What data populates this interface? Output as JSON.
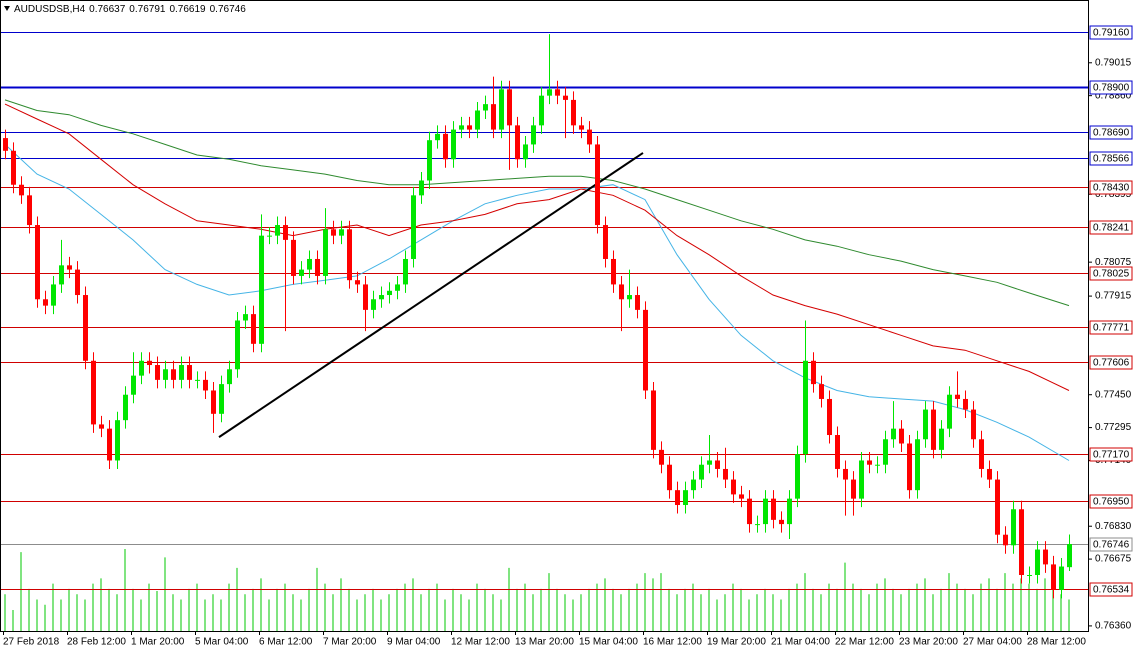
{
  "chart_data": {
    "type": "candlestick",
    "symbol": "AUDUSDSB,H4",
    "categories": [
      "27 Feb 2018",
      null,
      null,
      null,
      null,
      null,
      null,
      null,
      "28 Feb 12:00",
      null,
      null,
      null,
      null,
      null,
      null,
      null,
      "1 Mar 20:00",
      null,
      null,
      null,
      null,
      null,
      null,
      null,
      "5 Mar 04:00",
      null,
      null,
      null,
      null,
      null,
      null,
      null,
      "6 Mar 12:00",
      null,
      null,
      null,
      null,
      null,
      null,
      null,
      "7 Mar 20:00",
      null,
      null,
      null,
      null,
      null,
      null,
      null,
      "9 Mar 04:00",
      null,
      null,
      null,
      null,
      null,
      null,
      null,
      "12 Mar 12:00",
      null,
      null,
      null,
      null,
      null,
      null,
      null,
      "13 Mar 20:00",
      null,
      null,
      null,
      null,
      null,
      null,
      null,
      "15 Mar 04:00",
      null,
      null,
      null,
      null,
      null,
      null,
      null,
      "16 Mar 12:00",
      null,
      null,
      null,
      null,
      null,
      null,
      null,
      "19 Mar 20:00",
      null,
      null,
      null,
      null,
      null,
      null,
      null,
      "21 Mar 04:00",
      null,
      null,
      null,
      null,
      null,
      null,
      null,
      "22 Mar 12:00",
      null,
      null,
      null,
      null,
      null,
      null,
      null,
      "23 Mar 20:00",
      null,
      null,
      null,
      null,
      null,
      null,
      null,
      "27 Mar 04:00",
      null,
      null,
      null,
      null,
      null,
      null,
      null,
      "28 Mar 12:00",
      null,
      null,
      null,
      null,
      null
    ],
    "open": [
      0.7866,
      0.786,
      0.7844,
      0.7839,
      0.7825,
      0.779,
      0.7787,
      0.7797,
      0.7806,
      0.7804,
      0.7792,
      0.7761,
      0.7731,
      0.7729,
      0.7714,
      0.7733,
      0.7745,
      0.7754,
      0.7761,
      0.7759,
      0.7752,
      0.7757,
      0.7752,
      0.7759,
      0.7752,
      0.7752,
      0.7747,
      0.7736,
      0.775,
      0.7757,
      0.778,
      0.7783,
      0.7769,
      0.782,
      0.782,
      0.7825,
      0.7818,
      0.7801,
      0.7804,
      0.7809,
      0.7801,
      0.7823,
      0.782,
      0.7823,
      0.7799,
      0.7797,
      0.7785,
      0.779,
      0.7792,
      0.7794,
      0.7797,
      0.7809,
      0.7839,
      0.7846,
      0.7865,
      0.7868,
      0.7856,
      0.787,
      0.7872,
      0.787,
      0.7879,
      0.7882,
      0.787,
      0.7889,
      0.7872,
      0.7856,
      0.7863,
      0.7872,
      0.7886,
      0.7889,
      0.7886,
      0.7884,
      0.7872,
      0.787,
      0.7863,
      0.7825,
      0.7809,
      0.7797,
      0.779,
      0.7792,
      0.7785,
      0.7747,
      0.7719,
      0.7712,
      0.77,
      0.7693,
      0.77,
      0.7705,
      0.7712,
      0.7714,
      0.771,
      0.7705,
      0.7698,
      0.7696,
      0.7684,
      0.7684,
      0.7696,
      0.7686,
      0.7684,
      0.7696,
      0.7717,
      0.7761,
      0.775,
      0.7743,
      0.7726,
      0.771,
      0.7705,
      0.7696,
      0.7714,
      0.7712,
      0.7712,
      0.7724,
      0.7729,
      0.7722,
      0.77,
      0.7724,
      0.7738,
      0.7719,
      0.7729,
      0.7745,
      0.7743,
      0.7738,
      0.7724,
      0.771,
      0.7705,
      0.7679,
      0.7674,
      0.7691,
      0.766,
      0.766,
      0.7672,
      0.7665,
      0.7653,
      0.76637
    ],
    "high": [
      0.787,
      0.7864,
      0.7848,
      0.7843,
      0.7829,
      0.7794,
      0.7801,
      0.7818,
      0.781,
      0.7808,
      0.7796,
      0.7765,
      0.7735,
      0.7733,
      0.7737,
      0.7749,
      0.7765,
      0.7765,
      0.7765,
      0.7763,
      0.7761,
      0.7761,
      0.7763,
      0.7763,
      0.7756,
      0.7756,
      0.7751,
      0.7754,
      0.7761,
      0.7784,
      0.7787,
      0.7787,
      0.783,
      0.7824,
      0.7829,
      0.7829,
      0.7822,
      0.7808,
      0.7813,
      0.7813,
      0.7833,
      0.7827,
      0.7827,
      0.7827,
      0.7803,
      0.7801,
      0.7794,
      0.7796,
      0.7798,
      0.7801,
      0.7813,
      0.7843,
      0.785,
      0.7869,
      0.7872,
      0.7872,
      0.7874,
      0.7876,
      0.7876,
      0.7883,
      0.7886,
      0.7895,
      0.7893,
      0.7893,
      0.7876,
      0.7867,
      0.7876,
      0.789,
      0.7915,
      0.7893,
      0.789,
      0.7888,
      0.7876,
      0.7874,
      0.7867,
      0.7829,
      0.7813,
      0.7801,
      0.7804,
      0.7796,
      0.7789,
      0.7751,
      0.7723,
      0.7716,
      0.7704,
      0.7704,
      0.7709,
      0.7716,
      0.7726,
      0.7718,
      0.772,
      0.7709,
      0.7702,
      0.77,
      0.7688,
      0.77,
      0.77,
      0.769,
      0.77,
      0.7721,
      0.778,
      0.7765,
      0.7754,
      0.7747,
      0.773,
      0.7714,
      0.7709,
      0.7718,
      0.7718,
      0.7716,
      0.7728,
      0.7742,
      0.7733,
      0.7726,
      0.7728,
      0.7742,
      0.7742,
      0.7733,
      0.7749,
      0.7756,
      0.7747,
      0.7742,
      0.7728,
      0.7714,
      0.7709,
      0.7683,
      0.7695,
      0.7695,
      0.7664,
      0.7676,
      0.7676,
      0.7669,
      0.7668,
      0.76791
    ],
    "low": [
      0.7856,
      0.784,
      0.7835,
      0.7821,
      0.7786,
      0.7783,
      0.7783,
      0.7793,
      0.78,
      0.7788,
      0.7757,
      0.7727,
      0.7725,
      0.771,
      0.771,
      0.7729,
      0.7741,
      0.775,
      0.7755,
      0.7748,
      0.7748,
      0.7748,
      0.7748,
      0.7748,
      0.7748,
      0.7743,
      0.7727,
      0.7732,
      0.7746,
      0.7753,
      0.7776,
      0.7765,
      0.7765,
      0.7816,
      0.7816,
      0.7775,
      0.7797,
      0.7797,
      0.78,
      0.7797,
      0.7797,
      0.7816,
      0.7816,
      0.7795,
      0.7793,
      0.7775,
      0.7781,
      0.7786,
      0.7788,
      0.779,
      0.7793,
      0.7805,
      0.7835,
      0.7842,
      0.7861,
      0.7852,
      0.7852,
      0.7866,
      0.7866,
      0.7866,
      0.7875,
      0.7866,
      0.7866,
      0.7851,
      0.7852,
      0.7852,
      0.7859,
      0.7868,
      0.7882,
      0.7882,
      0.7866,
      0.7868,
      0.7866,
      0.7859,
      0.7821,
      0.7805,
      0.7793,
      0.7775,
      0.7786,
      0.7781,
      0.7743,
      0.7715,
      0.7708,
      0.7696,
      0.7689,
      0.7689,
      0.7696,
      0.7701,
      0.7708,
      0.7706,
      0.7701,
      0.7694,
      0.7692,
      0.768,
      0.768,
      0.768,
      0.7682,
      0.768,
      0.7677,
      0.7692,
      0.7713,
      0.7746,
      0.7739,
      0.7722,
      0.7706,
      0.7688,
      0.7688,
      0.7692,
      0.7708,
      0.7708,
      0.7708,
      0.772,
      0.7718,
      0.7696,
      0.7696,
      0.772,
      0.7715,
      0.7715,
      0.7725,
      0.7739,
      0.7734,
      0.772,
      0.7706,
      0.7701,
      0.7675,
      0.767,
      0.767,
      0.7656,
      0.7656,
      0.7656,
      0.7661,
      0.7649,
      0.7649,
      0.76619
    ],
    "close": [
      0.786,
      0.7844,
      0.7839,
      0.7825,
      0.779,
      0.7787,
      0.7797,
      0.7806,
      0.7804,
      0.7792,
      0.7761,
      0.7731,
      0.7729,
      0.7714,
      0.7733,
      0.7745,
      0.7754,
      0.7761,
      0.7759,
      0.7752,
      0.7757,
      0.7752,
      0.7759,
      0.7752,
      0.7752,
      0.7747,
      0.7736,
      0.775,
      0.7757,
      0.778,
      0.7783,
      0.7769,
      0.782,
      0.782,
      0.7825,
      0.7818,
      0.7801,
      0.7804,
      0.7809,
      0.7801,
      0.7823,
      0.782,
      0.7823,
      0.7799,
      0.7797,
      0.7785,
      0.779,
      0.7792,
      0.7794,
      0.7797,
      0.7809,
      0.7839,
      0.7846,
      0.7865,
      0.7868,
      0.7856,
      0.787,
      0.7872,
      0.787,
      0.7879,
      0.7882,
      0.787,
      0.7889,
      0.7872,
      0.7856,
      0.7863,
      0.7872,
      0.7886,
      0.7889,
      0.7886,
      0.7884,
      0.7872,
      0.787,
      0.7863,
      0.7825,
      0.7809,
      0.7797,
      0.779,
      0.7792,
      0.7785,
      0.7747,
      0.7719,
      0.7712,
      0.77,
      0.7693,
      0.77,
      0.7705,
      0.7712,
      0.7714,
      0.771,
      0.7705,
      0.7698,
      0.7696,
      0.7684,
      0.7684,
      0.7696,
      0.7686,
      0.7684,
      0.7696,
      0.7717,
      0.7761,
      0.775,
      0.7743,
      0.7726,
      0.771,
      0.7705,
      0.7696,
      0.7714,
      0.7712,
      0.7712,
      0.7724,
      0.7729,
      0.7722,
      0.77,
      0.7724,
      0.7738,
      0.7719,
      0.7729,
      0.7745,
      0.7743,
      0.7738,
      0.7724,
      0.771,
      0.7705,
      0.7679,
      0.7674,
      0.7691,
      0.766,
      0.766,
      0.7672,
      0.7665,
      0.7653,
      0.7664,
      0.76746
    ],
    "up_color": "#00e600",
    "down_color": "#ff0000",
    "ylim": [
      0.76336,
      0.79311
    ],
    "yticks": [
      0.79015,
      {
        "value": 0.7886,
        "label": "0.78860"
      },
      0.78395,
      0.78075,
      0.77915,
      {
        "value": 0.7745,
        "label": "0.77450"
      },
      0.77295,
      {
        "value": 0.7714,
        "label": "0.77140"
      },
      {
        "value": 0.7683,
        "label": "0.76830"
      },
      0.76675,
      {
        "value": 0.7636,
        "label": "0.76360"
      }
    ],
    "levels": [
      {
        "value": 0.7916,
        "label": "0.79160",
        "color": "#0000cc",
        "width": 1
      },
      {
        "value": 0.789,
        "label": "0.78900",
        "color": "#0000cc",
        "width": 2
      },
      {
        "value": 0.7869,
        "label": "0.78690",
        "color": "#0000cc",
        "width": 1
      },
      {
        "value": 0.78566,
        "color": "#0000cc",
        "width": 1
      },
      {
        "value": 0.7843,
        "label": "0.78430",
        "color": "#d00000",
        "width": 1
      },
      {
        "value": 0.78241,
        "color": "#d00000",
        "width": 1
      },
      {
        "value": 0.78025,
        "color": "#d00000",
        "width": 1
      },
      {
        "value": 0.77771,
        "color": "#d00000",
        "width": 1
      },
      {
        "value": 0.77606,
        "color": "#d00000",
        "width": 1
      },
      {
        "value": 0.7717,
        "label": "0.77170",
        "color": "#d00000",
        "width": 1
      },
      {
        "value": 0.7695,
        "label": "0.76950",
        "color": "#d00000",
        "width": 1
      },
      {
        "value": 0.76746,
        "color": "#8c8c8c",
        "width": 1
      },
      {
        "value": 0.76534,
        "color": "#d00000",
        "width": 1
      }
    ],
    "moving_averages": [
      {
        "color": "#45b4e6",
        "x": [
          0,
          4,
          8,
          12,
          16,
          20,
          24,
          28,
          32,
          36,
          40,
          44,
          48,
          52,
          56,
          60,
          64,
          68,
          72,
          76,
          80,
          84,
          88,
          92,
          96,
          100,
          104,
          108,
          112,
          116,
          120,
          124,
          128,
          133
        ],
        "values": [
          0.7863,
          0.7849,
          0.7842,
          0.783,
          0.7818,
          0.7804,
          0.7797,
          0.7792,
          0.7794,
          0.7797,
          0.7799,
          0.7801,
          0.7809,
          0.7818,
          0.7827,
          0.7835,
          0.7839,
          0.7842,
          0.7842,
          0.7844,
          0.7837,
          0.7811,
          0.779,
          0.7773,
          0.7761,
          0.7753,
          0.7747,
          0.7744,
          0.7743,
          0.7742,
          0.7738,
          0.7732,
          0.7725,
          0.7714
        ]
      },
      {
        "color": "#d40000",
        "x": [
          0,
          4,
          8,
          12,
          16,
          20,
          24,
          28,
          32,
          36,
          40,
          44,
          48,
          52,
          56,
          60,
          64,
          68,
          72,
          76,
          80,
          84,
          88,
          92,
          96,
          100,
          104,
          108,
          112,
          116,
          120,
          124,
          128,
          133
        ],
        "values": [
          0.7882,
          0.7875,
          0.7868,
          0.7856,
          0.7844,
          0.7835,
          0.7827,
          0.7825,
          0.7823,
          0.782,
          0.7823,
          0.7825,
          0.782,
          0.7825,
          0.7827,
          0.783,
          0.7835,
          0.7837,
          0.7842,
          0.7839,
          0.7832,
          0.782,
          0.7811,
          0.7801,
          0.7792,
          0.7787,
          0.7783,
          0.7778,
          0.7773,
          0.7768,
          0.7766,
          0.7761,
          0.7756,
          0.7747
        ]
      },
      {
        "color": "#2f8a2f",
        "x": [
          0,
          4,
          8,
          12,
          16,
          20,
          24,
          28,
          32,
          36,
          40,
          44,
          48,
          52,
          56,
          60,
          64,
          68,
          72,
          76,
          80,
          84,
          88,
          92,
          96,
          100,
          104,
          108,
          112,
          116,
          120,
          124,
          128,
          133
        ],
        "values": [
          0.7884,
          0.7879,
          0.7877,
          0.7872,
          0.7868,
          0.7863,
          0.7858,
          0.7856,
          0.7853,
          0.7851,
          0.7849,
          0.7846,
          0.7844,
          0.7844,
          0.7845,
          0.7846,
          0.7847,
          0.7848,
          0.7848,
          0.7846,
          0.7842,
          0.7837,
          0.7832,
          0.7827,
          0.7823,
          0.7818,
          0.7815,
          0.7811,
          0.7808,
          0.7804,
          0.7801,
          0.7798,
          0.7793,
          0.7787
        ]
      }
    ],
    "trendline": {
      "color": "#000000",
      "x": [
        26.75,
        79.75
      ],
      "values": [
        0.7725,
        0.7859
      ]
    },
    "volume": {
      "color": "#00c800",
      "ylim": [
        0,
        600
      ],
      "values": [
        35,
        20,
        75,
        40,
        30,
        25,
        45,
        30,
        40,
        35,
        30,
        45,
        50,
        40,
        35,
        78,
        40,
        30,
        45,
        38,
        70,
        35,
        30,
        40,
        45,
        30,
        35,
        30,
        45,
        60,
        35,
        40,
        50,
        30,
        40,
        45,
        35,
        30,
        40,
        60,
        45,
        35,
        50,
        40,
        30,
        35,
        40,
        30,
        35,
        40,
        45,
        50,
        35,
        40,
        45,
        30,
        40,
        35,
        30,
        45,
        40,
        35,
        30,
        60,
        40,
        45,
        35,
        40,
        55,
        40,
        35,
        30,
        35,
        40,
        45,
        50,
        40,
        35,
        40,
        45,
        55,
        50,
        55,
        40,
        35,
        40,
        45,
        35,
        40,
        30,
        35,
        45,
        40,
        30,
        35,
        40,
        35,
        30,
        40,
        45,
        55,
        40,
        35,
        45,
        40,
        65,
        45,
        40,
        35,
        45,
        50,
        40,
        35,
        40,
        45,
        50,
        35,
        40,
        55,
        45,
        40,
        35,
        45,
        50,
        40,
        55,
        45,
        50,
        45,
        40,
        50,
        45,
        35,
        30
      ]
    }
  }
}
